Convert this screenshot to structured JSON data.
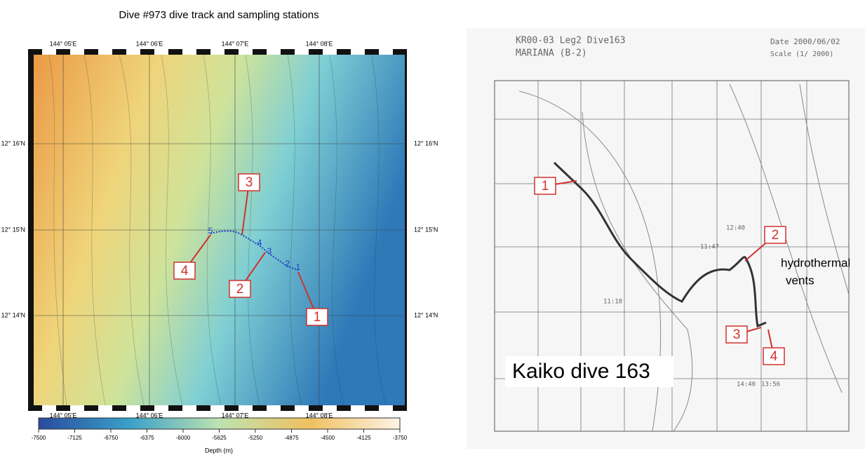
{
  "left_map": {
    "title": "Dive #973 dive track and sampling stations",
    "lon_labels": [
      "144° 05'E",
      "144° 06'E",
      "144° 07'E",
      "144° 08'E"
    ],
    "lat_labels": [
      "12° 16'N",
      "12° 15'N",
      "12° 14'N"
    ],
    "track_points": [
      "5",
      "4",
      "3",
      "2",
      "1"
    ],
    "stations": [
      "3",
      "4",
      "2",
      "1"
    ],
    "colorbar": {
      "ticks": [
        -7500,
        -7125,
        -6750,
        -6375,
        -6000,
        -5625,
        -5250,
        -4875,
        -4500,
        -4125,
        -3750
      ],
      "label": "Depth (m)"
    }
  },
  "right_map": {
    "header": [
      "KR00-03 Leg2 Dive163",
      "MARIANA (B-2)"
    ],
    "date": "Date 2000/06/02",
    "scale": "Scale (1/ 2000)",
    "times": [
      "11:47",
      "11:18",
      "12:40",
      "14:40",
      "13:56"
    ],
    "stations": [
      "1",
      "2",
      "3",
      "4"
    ],
    "annotation": [
      "hydrothermal",
      "vents"
    ],
    "caption": "Kaiko dive 163"
  }
}
